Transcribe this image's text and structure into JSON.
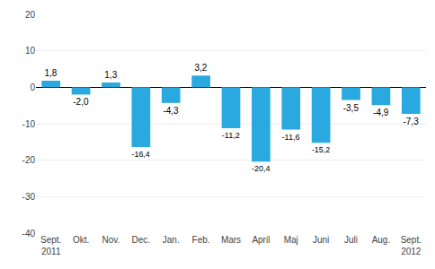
{
  "chart_data": {
    "type": "bar",
    "categories": [
      "Sept.\n2011",
      "Okt.",
      "Nov.",
      "Dec.",
      "Jan.",
      "Feb.",
      "Mars",
      "April",
      "Maj",
      "Juni",
      "Juli",
      "Aug.",
      "Sept.\n2012"
    ],
    "values": [
      1.8,
      -2.0,
      1.3,
      -16.4,
      -4.3,
      3.2,
      -11.2,
      -20.4,
      -11.6,
      -15.2,
      -3.5,
      -4.9,
      -7.3
    ],
    "value_labels": [
      "1,8",
      "-2,0",
      "1,3",
      "-16,4",
      "-4,3",
      "3,2",
      "-11,2",
      "-20,4",
      "-11,6",
      "-15,2",
      "-3,5",
      "-4,9",
      "-7,3"
    ],
    "data_labels": true,
    "color": "#29a9e0",
    "ylim": [
      -40,
      20
    ],
    "yticks": [
      -40,
      -30,
      -20,
      -10,
      0,
      10,
      20
    ],
    "grid": true
  }
}
